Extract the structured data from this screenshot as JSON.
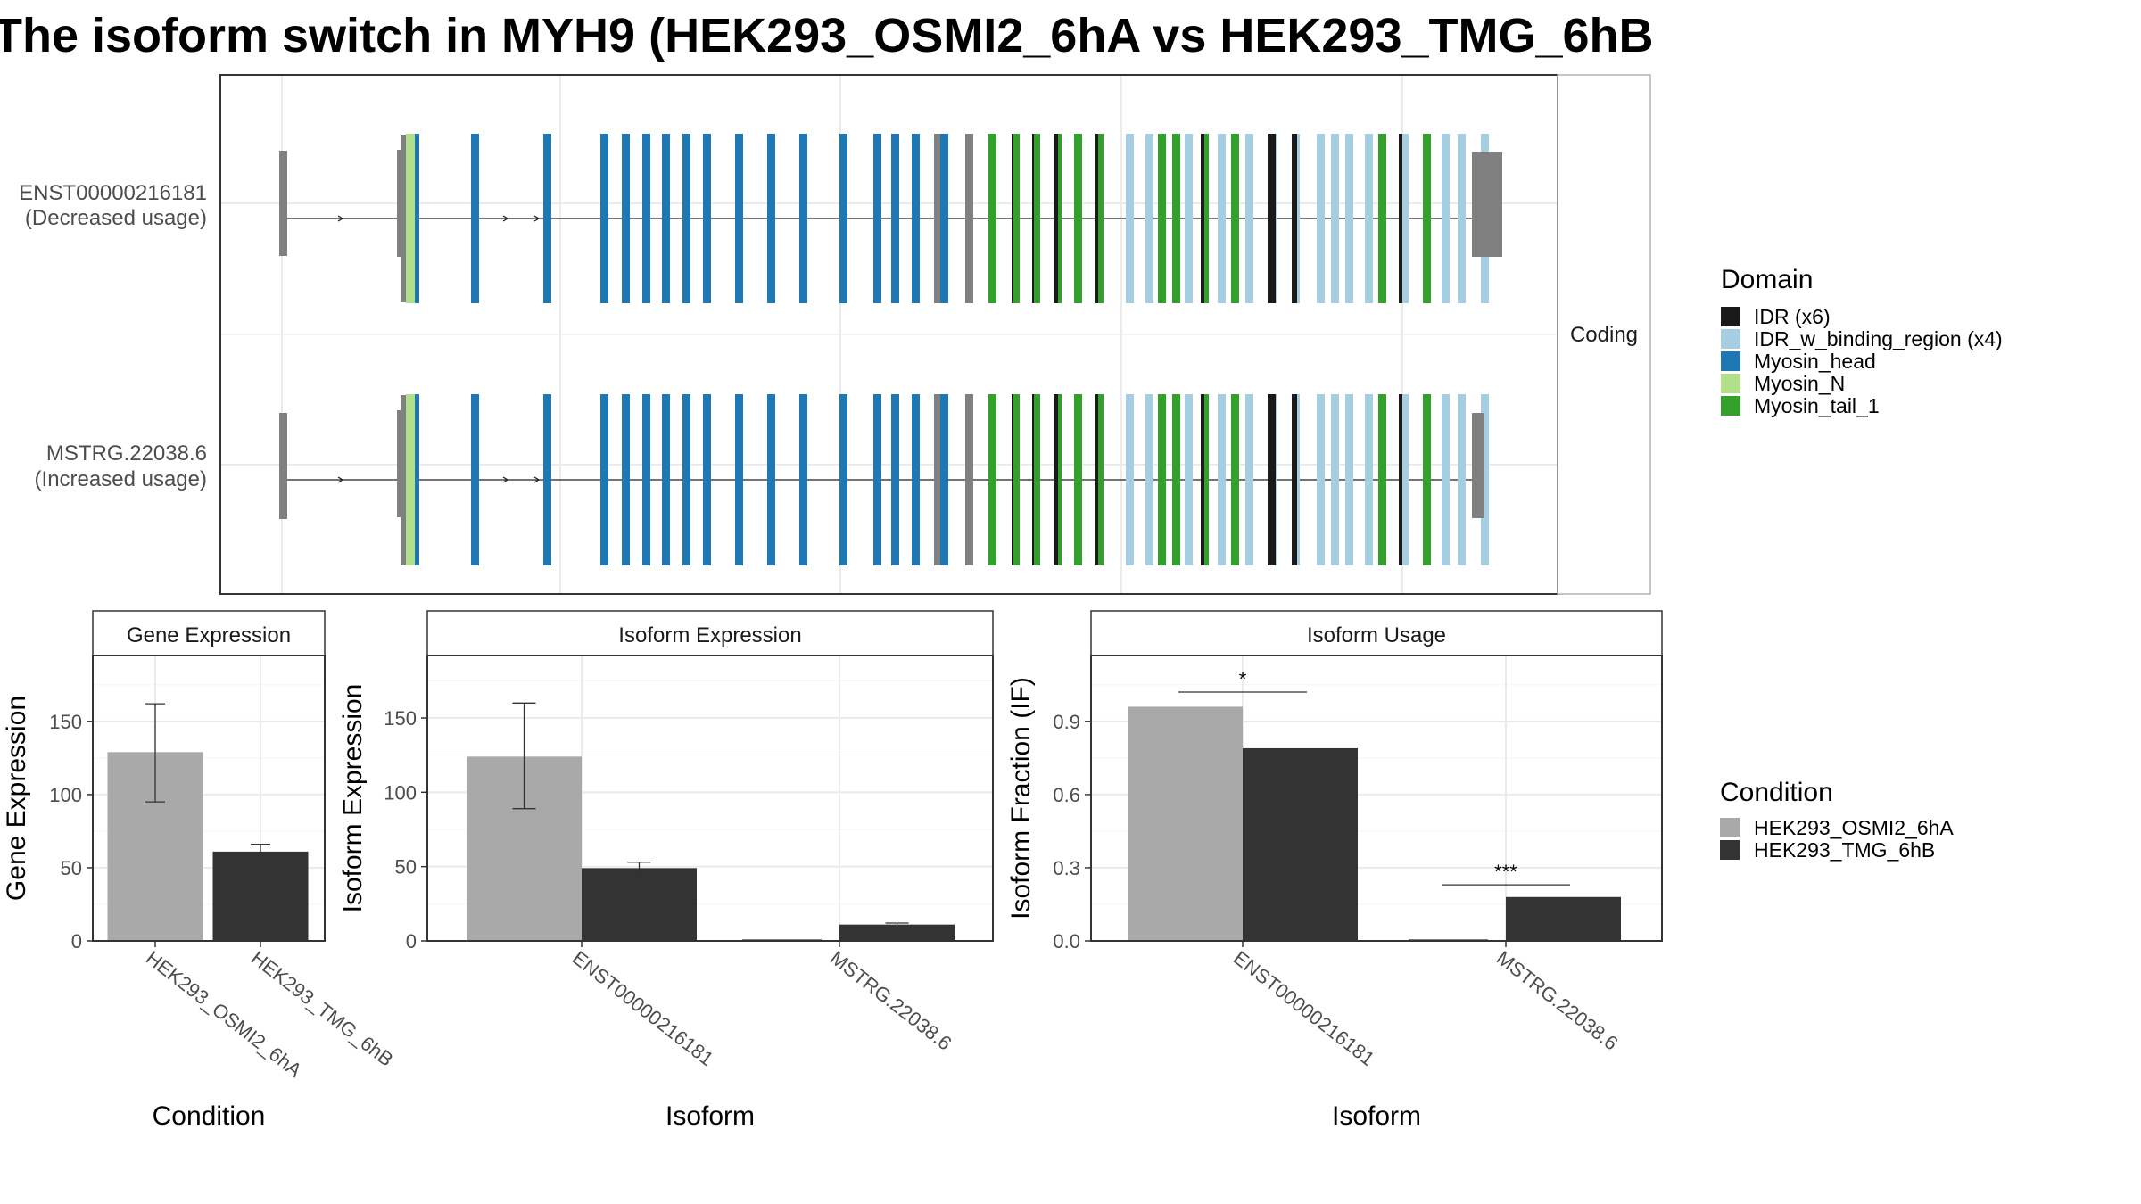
{
  "title": "The isoform switch in MYH9 (HEK293_OSMI2_6hA vs HEK293_TMG_6hB",
  "colors": {
    "cond_a": "#a9a9a9",
    "cond_b": "#333333",
    "idr": "#1a1a1a",
    "idr_binding": "#a6cee3",
    "myosin_head": "#1f78b4",
    "myosin_n": "#b2df8a",
    "myosin_tail": "#33a02c",
    "noncoding": "#808080"
  },
  "transcript_panel": {
    "strip": "Coding",
    "transcripts": [
      {
        "id": "ENST00000216181",
        "usage": "(Decreased usage)"
      },
      {
        "id": "MSTRG.22038.6",
        "usage": "(Increased usage)"
      }
    ]
  },
  "legends": {
    "domain": {
      "title": "Domain",
      "items": [
        {
          "label": "IDR (x6)",
          "color": "#1a1a1a"
        },
        {
          "label": "IDR_w_binding_region (x4)",
          "color": "#a6cee3"
        },
        {
          "label": "Myosin_head",
          "color": "#1f78b4"
        },
        {
          "label": "Myosin_N",
          "color": "#b2df8a"
        },
        {
          "label": "Myosin_tail_1",
          "color": "#33a02c"
        }
      ]
    },
    "condition": {
      "title": "Condition",
      "items": [
        {
          "label": "HEK293_OSMI2_6hA",
          "color": "#a9a9a9"
        },
        {
          "label": "HEK293_TMG_6hB",
          "color": "#333333"
        }
      ]
    }
  },
  "chart_data": [
    {
      "type": "bar",
      "strip": "Gene Expression",
      "xlabel": "Condition",
      "ylabel": "Gene Expression",
      "ylim": [
        0,
        195
      ],
      "yticks": [
        0,
        50,
        100,
        150
      ],
      "categories": [
        "HEK293_OSMI2_6hA",
        "HEK293_TMG_6hB"
      ],
      "values": [
        129,
        61
      ],
      "errors": [
        [
          95,
          162
        ],
        [
          56,
          66
        ]
      ]
    },
    {
      "type": "bar",
      "strip": "Isoform Expression",
      "xlabel": "Isoform",
      "ylabel": "Isoform Expression",
      "ylim": [
        0,
        192
      ],
      "yticks": [
        0,
        50,
        100,
        150
      ],
      "categories": [
        "ENST00000216181",
        "MSTRG.22038.6"
      ],
      "series": [
        {
          "name": "HEK293_OSMI2_6hA",
          "values": [
            124,
            0
          ],
          "errors": [
            [
              89,
              160
            ],
            [
              0,
              0
            ]
          ]
        },
        {
          "name": "HEK293_TMG_6hB",
          "values": [
            49,
            11
          ],
          "errors": [
            [
              45,
              53
            ],
            [
              10,
              12
            ]
          ]
        }
      ]
    },
    {
      "type": "bar",
      "strip": "Isoform Usage",
      "xlabel": "Isoform",
      "ylabel": "Isoform Fraction (IF)",
      "ylim": [
        0,
        1.17
      ],
      "yticks": [
        0.0,
        0.3,
        0.6,
        0.9
      ],
      "categories": [
        "ENST00000216181",
        "MSTRG.22038.6"
      ],
      "series": [
        {
          "name": "HEK293_OSMI2_6hA",
          "values": [
            0.96,
            0.0
          ]
        },
        {
          "name": "HEK293_TMG_6hB",
          "values": [
            0.79,
            0.18
          ]
        }
      ],
      "significance": [
        {
          "category": "ENST00000216181",
          "label": "*",
          "level": 1.02
        },
        {
          "category": "MSTRG.22038.6",
          "label": "***",
          "level": 0.23
        }
      ]
    }
  ]
}
